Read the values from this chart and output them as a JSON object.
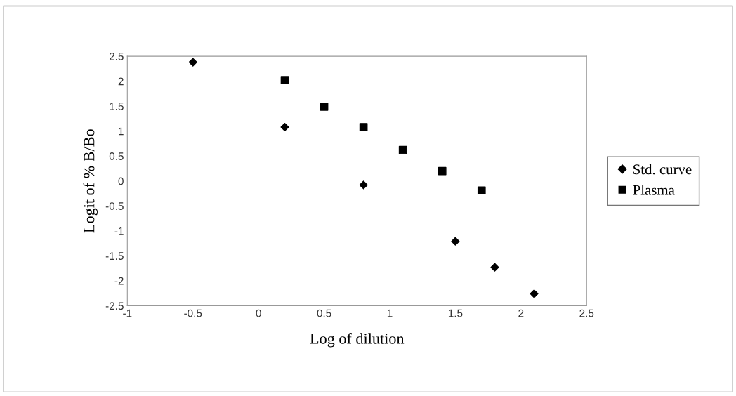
{
  "chart_data": {
    "type": "scatter",
    "xlabel": "Log of dilution",
    "ylabel": "Logit of % B/Bo",
    "xlim": [
      -1,
      2.5
    ],
    "xticks": [
      -1,
      -0.5,
      0,
      0.5,
      1,
      1.5,
      2,
      2.5
    ],
    "ylim": [
      -2.5,
      2.5
    ],
    "yticks": [
      -2.5,
      -2,
      -1.5,
      -1,
      -0.5,
      0,
      0.5,
      1,
      1.5,
      2,
      2.5
    ],
    "grid": false,
    "legend": "right",
    "series": [
      {
        "name": "Std. curve",
        "color": "#000000",
        "marker": "diamond",
        "x": [
          -0.5,
          0.2,
          0.8,
          1.5,
          1.8,
          2.1
        ],
        "values": [
          2.38,
          1.08,
          -0.08,
          -1.21,
          -1.73,
          -2.26
        ]
      },
      {
        "name": "Plasma",
        "color": "#000000",
        "marker": "square",
        "x": [
          0.2,
          0.5,
          0.8,
          1.1,
          1.4,
          1.7
        ],
        "values": [
          2.02,
          1.49,
          1.08,
          0.62,
          0.2,
          -0.19
        ]
      }
    ]
  }
}
